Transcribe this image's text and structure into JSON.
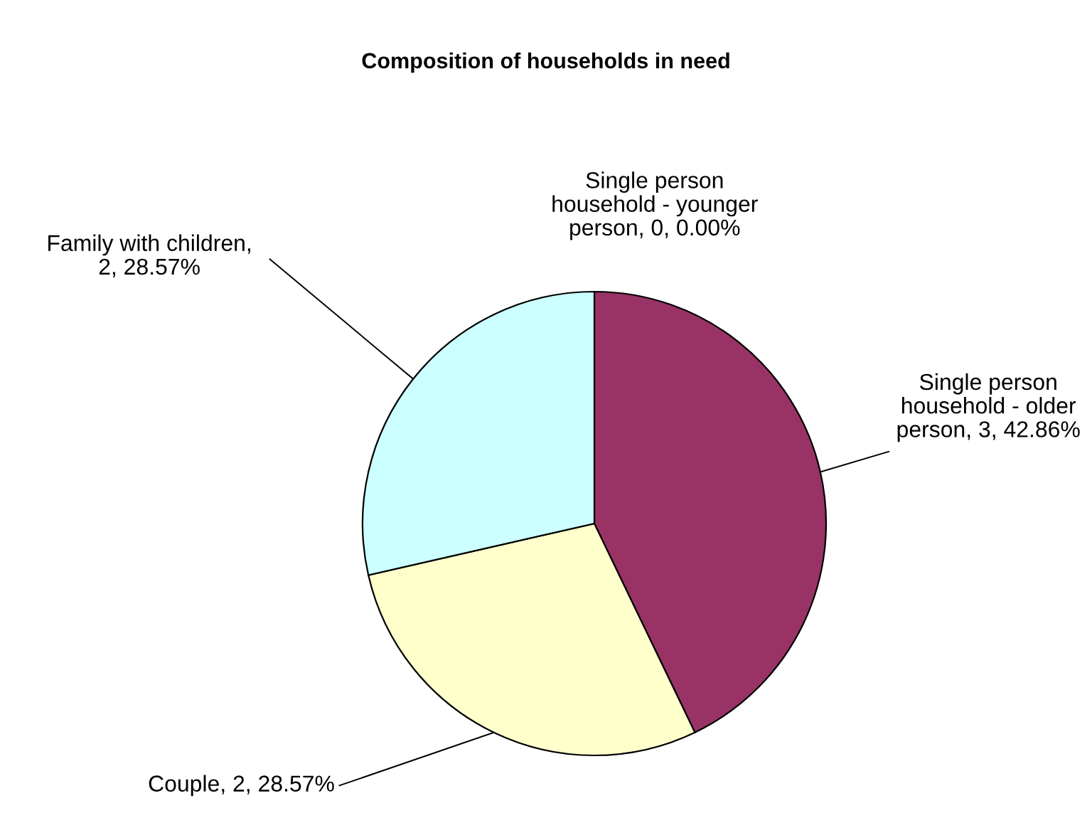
{
  "chart_data": {
    "type": "pie",
    "title": "Composition of households in need",
    "categories": [
      "Single person household - younger person",
      "Single person household - older person",
      "Couple",
      "Family with children"
    ],
    "values": [
      0,
      3,
      2,
      2
    ],
    "colors": [
      "#9999ff",
      "#993366",
      "#ffffcc",
      "#ccffff"
    ],
    "value_labels": [
      ", 0, 0.00%",
      ", 3, 42.86%",
      ", 2, 28.57%",
      ", 2, 28.57%"
    ],
    "legend": false
  }
}
